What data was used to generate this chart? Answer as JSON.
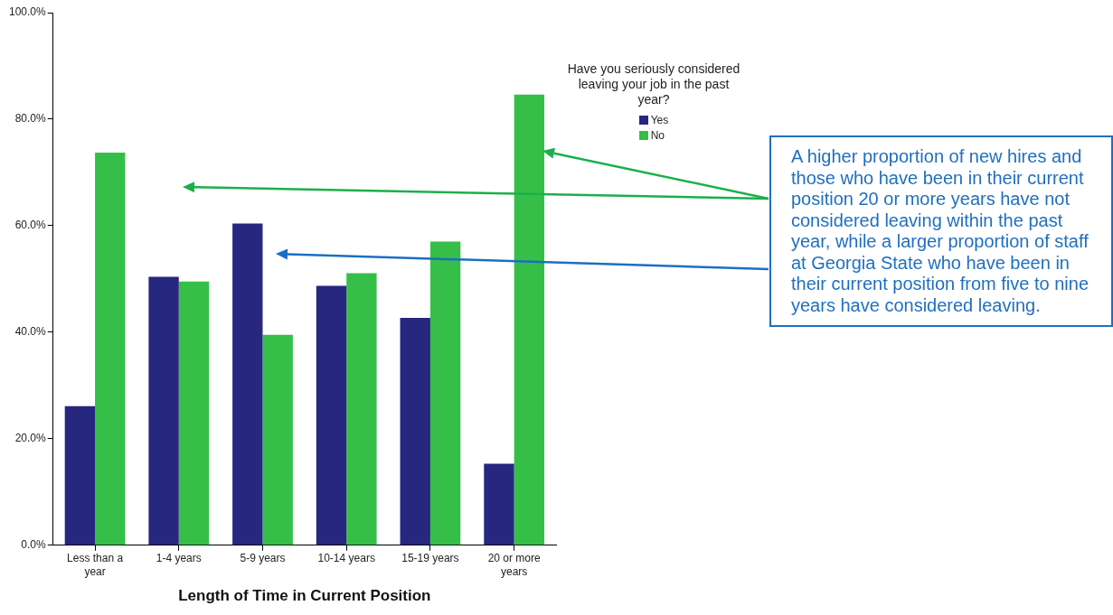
{
  "chart_data": {
    "type": "bar",
    "xlabel": "Length of Time in Current Position",
    "categories": [
      "Less than a year",
      "1-4 years",
      "5-9 years",
      "10-14 years",
      "15-19 years",
      "20 or more years"
    ],
    "series": [
      {
        "name": "Yes",
        "color": "#27277f",
        "values": [
          26.1,
          50.4,
          60.4,
          48.7,
          42.7,
          15.3
        ]
      },
      {
        "name": "No",
        "color": "#35bf48",
        "values": [
          73.7,
          49.5,
          39.5,
          51.1,
          57.0,
          84.6
        ]
      }
    ],
    "ylim": [
      0,
      100
    ],
    "yticks": [
      {
        "value": 0,
        "label": "0.0%"
      },
      {
        "value": 20,
        "label": "20.0%"
      },
      {
        "value": 40,
        "label": "40.0%"
      },
      {
        "value": 60,
        "label": "60.0%"
      },
      {
        "value": 80,
        "label": "80.0%"
      },
      {
        "value": 100,
        "label": "100.0%"
      }
    ],
    "grid": false,
    "legend": "right",
    "legend_title": "Have you seriously considered leaving your job in the past year?",
    "annotations": [
      "A higher proportion of new hires and those who have been in their current position 20 or more years have not considered leaving within the past year, while a larger proportion of staff at Georgia State who have been in their current position from five to nine years have considered leaving."
    ]
  }
}
